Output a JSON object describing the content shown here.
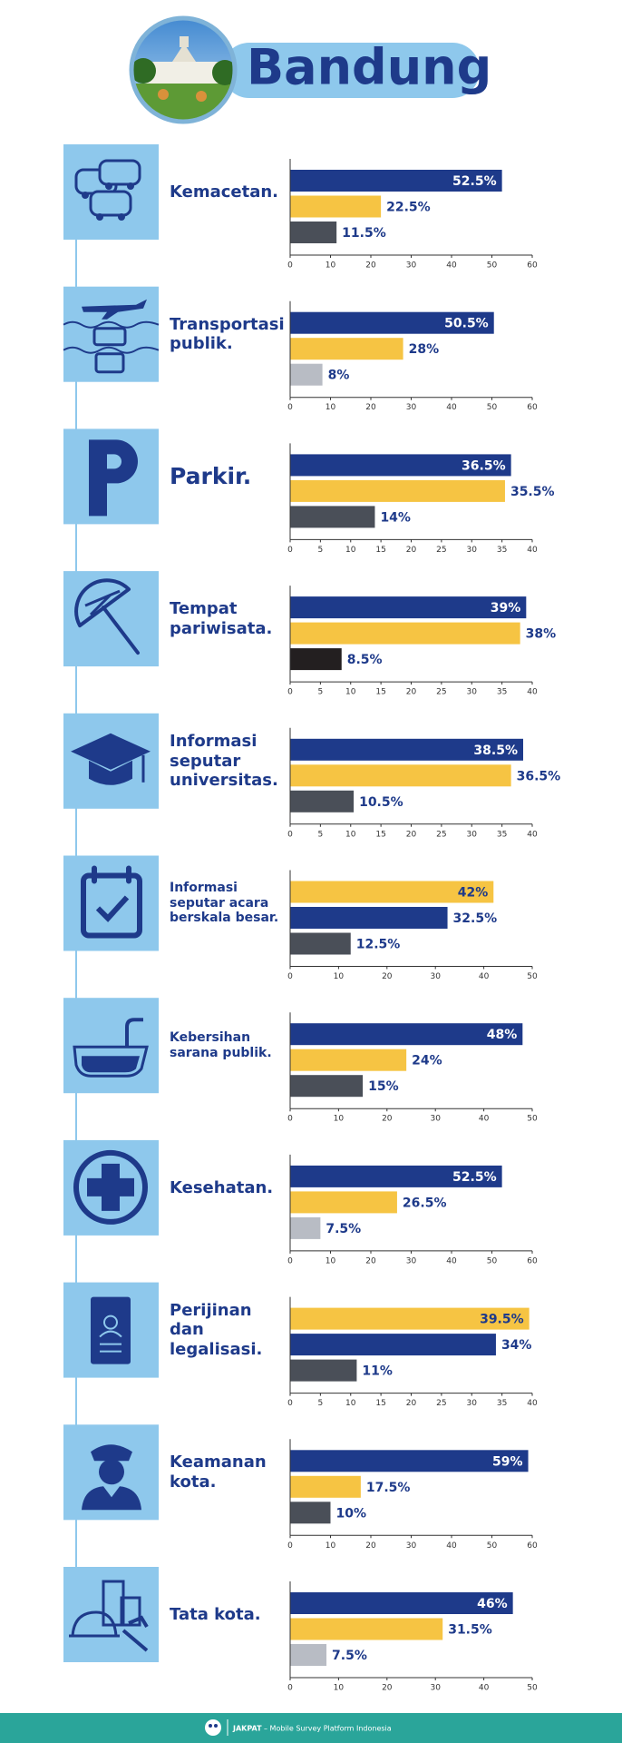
{
  "header": {
    "title": "Bandung"
  },
  "chart_data": [
    {
      "type": "bar",
      "orientation": "horizontal",
      "title": "Kemacetan.",
      "values": [
        52.5,
        22.5,
        11.5
      ],
      "value_labels": [
        "52.5%",
        "22.5%",
        "11.5%"
      ],
      "colors": [
        "#1e3a8a",
        "#f6c443",
        "#4a4f58"
      ],
      "xlim": [
        0,
        60
      ],
      "xticks": [
        0,
        10,
        20,
        30,
        40,
        50,
        60
      ]
    },
    {
      "type": "bar",
      "orientation": "horizontal",
      "title": "Transportasi\npublik.",
      "values": [
        50.5,
        28,
        8
      ],
      "value_labels": [
        "50.5%",
        "28%",
        "8%"
      ],
      "colors": [
        "#1e3a8a",
        "#f6c443",
        "#b8bcc4"
      ],
      "xlim": [
        0,
        60
      ],
      "xticks": [
        0,
        10,
        20,
        30,
        40,
        50,
        60
      ]
    },
    {
      "type": "bar",
      "orientation": "horizontal",
      "title": "Parkir.",
      "values": [
        36.5,
        35.5,
        14
      ],
      "value_labels": [
        "36.5%",
        "35.5%",
        "14%"
      ],
      "colors": [
        "#1e3a8a",
        "#f6c443",
        "#4a4f58"
      ],
      "xlim": [
        0,
        40
      ],
      "xticks": [
        0,
        5,
        10,
        15,
        20,
        25,
        30,
        35,
        40
      ]
    },
    {
      "type": "bar",
      "orientation": "horizontal",
      "title": "Tempat\npariwisata.",
      "values": [
        39,
        38,
        8.5
      ],
      "value_labels": [
        "39%",
        "38%",
        "8.5%"
      ],
      "colors": [
        "#1e3a8a",
        "#f6c443",
        "#231f20"
      ],
      "xlim": [
        0,
        40
      ],
      "xticks": [
        0,
        5,
        10,
        15,
        20,
        25,
        30,
        35,
        40
      ]
    },
    {
      "type": "bar",
      "orientation": "horizontal",
      "title": "Informasi\nseputar\nuniversitas.",
      "values": [
        38.5,
        36.5,
        10.5
      ],
      "value_labels": [
        "38.5%",
        "36.5%",
        "10.5%"
      ],
      "colors": [
        "#1e3a8a",
        "#f6c443",
        "#4a4f58"
      ],
      "xlim": [
        0,
        40
      ],
      "xticks": [
        0,
        5,
        10,
        15,
        20,
        25,
        30,
        35,
        40
      ]
    },
    {
      "type": "bar",
      "orientation": "horizontal",
      "title": "Informasi\nseputar acara\nberskala besar.",
      "values": [
        42,
        32.5,
        12.5
      ],
      "value_labels": [
        "42%",
        "32.5%",
        "12.5%"
      ],
      "colors": [
        "#f6c443",
        "#1e3a8a",
        "#4a4f58"
      ],
      "xlim": [
        0,
        50
      ],
      "xticks": [
        0,
        10,
        20,
        30,
        40,
        50
      ]
    },
    {
      "type": "bar",
      "orientation": "horizontal",
      "title": "Kebersihan\nsarana publik.",
      "values": [
        48,
        24,
        15
      ],
      "value_labels": [
        "48%",
        "24%",
        "15%"
      ],
      "colors": [
        "#1e3a8a",
        "#f6c443",
        "#4a4f58"
      ],
      "xlim": [
        0,
        50
      ],
      "xticks": [
        0,
        10,
        20,
        30,
        40,
        50
      ]
    },
    {
      "type": "bar",
      "orientation": "horizontal",
      "title": "Kesehatan.",
      "values": [
        52.5,
        26.5,
        7.5
      ],
      "value_labels": [
        "52.5%",
        "26.5%",
        "7.5%"
      ],
      "colors": [
        "#1e3a8a",
        "#f6c443",
        "#b8bcc4"
      ],
      "xlim": [
        0,
        60
      ],
      "xticks": [
        0,
        10,
        20,
        30,
        40,
        50,
        60
      ]
    },
    {
      "type": "bar",
      "orientation": "horizontal",
      "title": "Perijinan dan\nlegalisasi.",
      "values": [
        39.5,
        34,
        11
      ],
      "value_labels": [
        "39.5%",
        "34%",
        "11%"
      ],
      "colors": [
        "#f6c443",
        "#1e3a8a",
        "#4a4f58"
      ],
      "xlim": [
        0,
        40
      ],
      "xticks": [
        0,
        5,
        10,
        15,
        20,
        25,
        30,
        35,
        40
      ]
    },
    {
      "type": "bar",
      "orientation": "horizontal",
      "title": "Keamanan\nkota.",
      "values": [
        59,
        17.5,
        10
      ],
      "value_labels": [
        "59%",
        "17.5%",
        "10%"
      ],
      "colors": [
        "#1e3a8a",
        "#f6c443",
        "#4a4f58"
      ],
      "xlim": [
        0,
        60
      ],
      "xticks": [
        0,
        10,
        20,
        30,
        40,
        50,
        60
      ]
    },
    {
      "type": "bar",
      "orientation": "horizontal",
      "title": "Tata kota.",
      "values": [
        46,
        31.5,
        7.5
      ],
      "value_labels": [
        "46%",
        "31.5%",
        "7.5%"
      ],
      "colors": [
        "#1e3a8a",
        "#f6c443",
        "#b8bcc4"
      ],
      "xlim": [
        0,
        50
      ],
      "xticks": [
        0,
        10,
        20,
        30,
        40,
        50
      ]
    }
  ],
  "footer": {
    "brand": "JAKPAT",
    "tagline": "– Mobile Survey Platform Indonesia"
  }
}
